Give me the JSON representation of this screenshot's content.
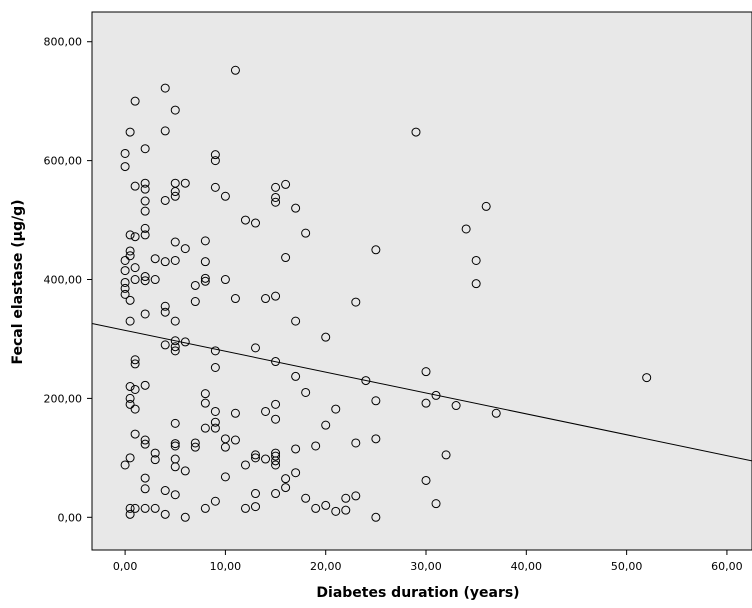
{
  "chart_data": {
    "type": "scatter",
    "title": "",
    "xlabel": "Diabetes duration (years)",
    "ylabel": "Fecal elastase (µg/g)",
    "xlim": [
      -3.3,
      62.5
    ],
    "ylim": [
      -55,
      850
    ],
    "x_ticks": [
      0,
      10,
      20,
      30,
      40,
      50,
      60
    ],
    "x_tick_labels": [
      "0,00",
      "10,00",
      "20,00",
      "30,00",
      "40,00",
      "50,00",
      "60,00"
    ],
    "y_ticks": [
      0,
      200,
      400,
      600,
      800
    ],
    "y_tick_labels": [
      "0,00",
      "200,00",
      "400,00",
      "600,00",
      "800,00"
    ],
    "plot_background": "#e8e8e8",
    "marker_color": "#000000",
    "grid": false,
    "legend": "none",
    "fit_line": {
      "type": "linear",
      "x": [
        -3.3,
        62.5
      ],
      "y": [
        326,
        95
      ]
    },
    "points": [
      [
        0,
        612
      ],
      [
        0,
        590
      ],
      [
        0,
        432
      ],
      [
        0,
        415
      ],
      [
        0,
        395
      ],
      [
        0,
        385
      ],
      [
        0,
        375
      ],
      [
        0,
        88
      ],
      [
        0.5,
        648
      ],
      [
        0.5,
        475
      ],
      [
        0.5,
        448
      ],
      [
        0.5,
        440
      ],
      [
        0.5,
        365
      ],
      [
        0.5,
        330
      ],
      [
        0.5,
        220
      ],
      [
        0.5,
        200
      ],
      [
        0.5,
        190
      ],
      [
        0.5,
        100
      ],
      [
        0.5,
        15
      ],
      [
        0.5,
        5
      ],
      [
        1,
        700
      ],
      [
        1,
        557
      ],
      [
        1,
        472
      ],
      [
        1,
        420
      ],
      [
        1,
        400
      ],
      [
        1,
        265
      ],
      [
        1,
        258
      ],
      [
        1,
        215
      ],
      [
        1,
        182
      ],
      [
        1,
        140
      ],
      [
        1,
        15
      ],
      [
        2,
        620
      ],
      [
        2,
        562
      ],
      [
        2,
        552
      ],
      [
        2,
        532
      ],
      [
        2,
        515
      ],
      [
        2,
        486
      ],
      [
        2,
        475
      ],
      [
        2,
        405
      ],
      [
        2,
        398
      ],
      [
        2,
        342
      ],
      [
        2,
        222
      ],
      [
        2,
        130
      ],
      [
        2,
        123
      ],
      [
        2,
        66
      ],
      [
        2,
        48
      ],
      [
        2,
        15
      ],
      [
        3,
        435
      ],
      [
        3,
        400
      ],
      [
        3,
        108
      ],
      [
        3,
        97
      ],
      [
        3,
        15
      ],
      [
        4,
        722
      ],
      [
        4,
        650
      ],
      [
        4,
        533
      ],
      [
        4,
        430
      ],
      [
        4,
        355
      ],
      [
        4,
        345
      ],
      [
        4,
        290
      ],
      [
        4,
        45
      ],
      [
        4,
        5
      ],
      [
        5,
        685
      ],
      [
        5,
        562
      ],
      [
        5,
        548
      ],
      [
        5,
        540
      ],
      [
        5,
        463
      ],
      [
        5,
        432
      ],
      [
        5,
        330
      ],
      [
        5,
        297
      ],
      [
        5,
        287
      ],
      [
        5,
        280
      ],
      [
        5,
        158
      ],
      [
        5,
        124
      ],
      [
        5,
        120
      ],
      [
        5,
        98
      ],
      [
        5,
        85
      ],
      [
        5,
        38
      ],
      [
        6,
        562
      ],
      [
        6,
        452
      ],
      [
        6,
        295
      ],
      [
        6,
        78
      ],
      [
        6,
        0
      ],
      [
        7,
        390
      ],
      [
        7,
        363
      ],
      [
        7,
        125
      ],
      [
        7,
        118
      ],
      [
        8,
        465
      ],
      [
        8,
        430
      ],
      [
        8,
        402
      ],
      [
        8,
        397
      ],
      [
        8,
        208
      ],
      [
        8,
        192
      ],
      [
        8,
        150
      ],
      [
        8,
        15
      ],
      [
        9,
        610
      ],
      [
        9,
        600
      ],
      [
        9,
        555
      ],
      [
        9,
        280
      ],
      [
        9,
        252
      ],
      [
        9,
        178
      ],
      [
        9,
        160
      ],
      [
        9,
        150
      ],
      [
        9,
        27
      ],
      [
        10,
        540
      ],
      [
        10,
        400
      ],
      [
        10,
        132
      ],
      [
        10,
        118
      ],
      [
        10,
        68
      ],
      [
        11,
        752
      ],
      [
        11,
        368
      ],
      [
        11,
        175
      ],
      [
        11,
        130
      ],
      [
        12,
        500
      ],
      [
        12,
        88
      ],
      [
        12,
        15
      ],
      [
        13,
        495
      ],
      [
        13,
        285
      ],
      [
        13,
        105
      ],
      [
        13,
        100
      ],
      [
        13,
        40
      ],
      [
        13,
        18
      ],
      [
        14,
        368
      ],
      [
        14,
        178
      ],
      [
        14,
        98
      ],
      [
        15,
        555
      ],
      [
        15,
        538
      ],
      [
        15,
        530
      ],
      [
        15,
        372
      ],
      [
        15,
        262
      ],
      [
        15,
        190
      ],
      [
        15,
        165
      ],
      [
        15,
        108
      ],
      [
        15,
        103
      ],
      [
        15,
        95
      ],
      [
        15,
        88
      ],
      [
        15,
        40
      ],
      [
        16,
        560
      ],
      [
        16,
        437
      ],
      [
        16,
        65
      ],
      [
        16,
        50
      ],
      [
        17,
        520
      ],
      [
        17,
        330
      ],
      [
        17,
        237
      ],
      [
        17,
        115
      ],
      [
        17,
        75
      ],
      [
        18,
        478
      ],
      [
        18,
        210
      ],
      [
        18,
        32
      ],
      [
        19,
        120
      ],
      [
        19,
        15
      ],
      [
        20,
        303
      ],
      [
        20,
        155
      ],
      [
        20,
        20
      ],
      [
        21,
        182
      ],
      [
        21,
        10
      ],
      [
        22,
        32
      ],
      [
        22,
        12
      ],
      [
        23,
        362
      ],
      [
        23,
        125
      ],
      [
        23,
        36
      ],
      [
        24,
        230
      ],
      [
        25,
        450
      ],
      [
        25,
        196
      ],
      [
        25,
        132
      ],
      [
        25,
        0
      ],
      [
        29,
        648
      ],
      [
        30,
        245
      ],
      [
        30,
        192
      ],
      [
        30,
        62
      ],
      [
        31,
        205
      ],
      [
        31,
        23
      ],
      [
        32,
        105
      ],
      [
        33,
        188
      ],
      [
        34,
        485
      ],
      [
        35,
        432
      ],
      [
        35,
        393
      ],
      [
        36,
        523
      ],
      [
        37,
        175
      ],
      [
        52,
        235
      ]
    ]
  }
}
